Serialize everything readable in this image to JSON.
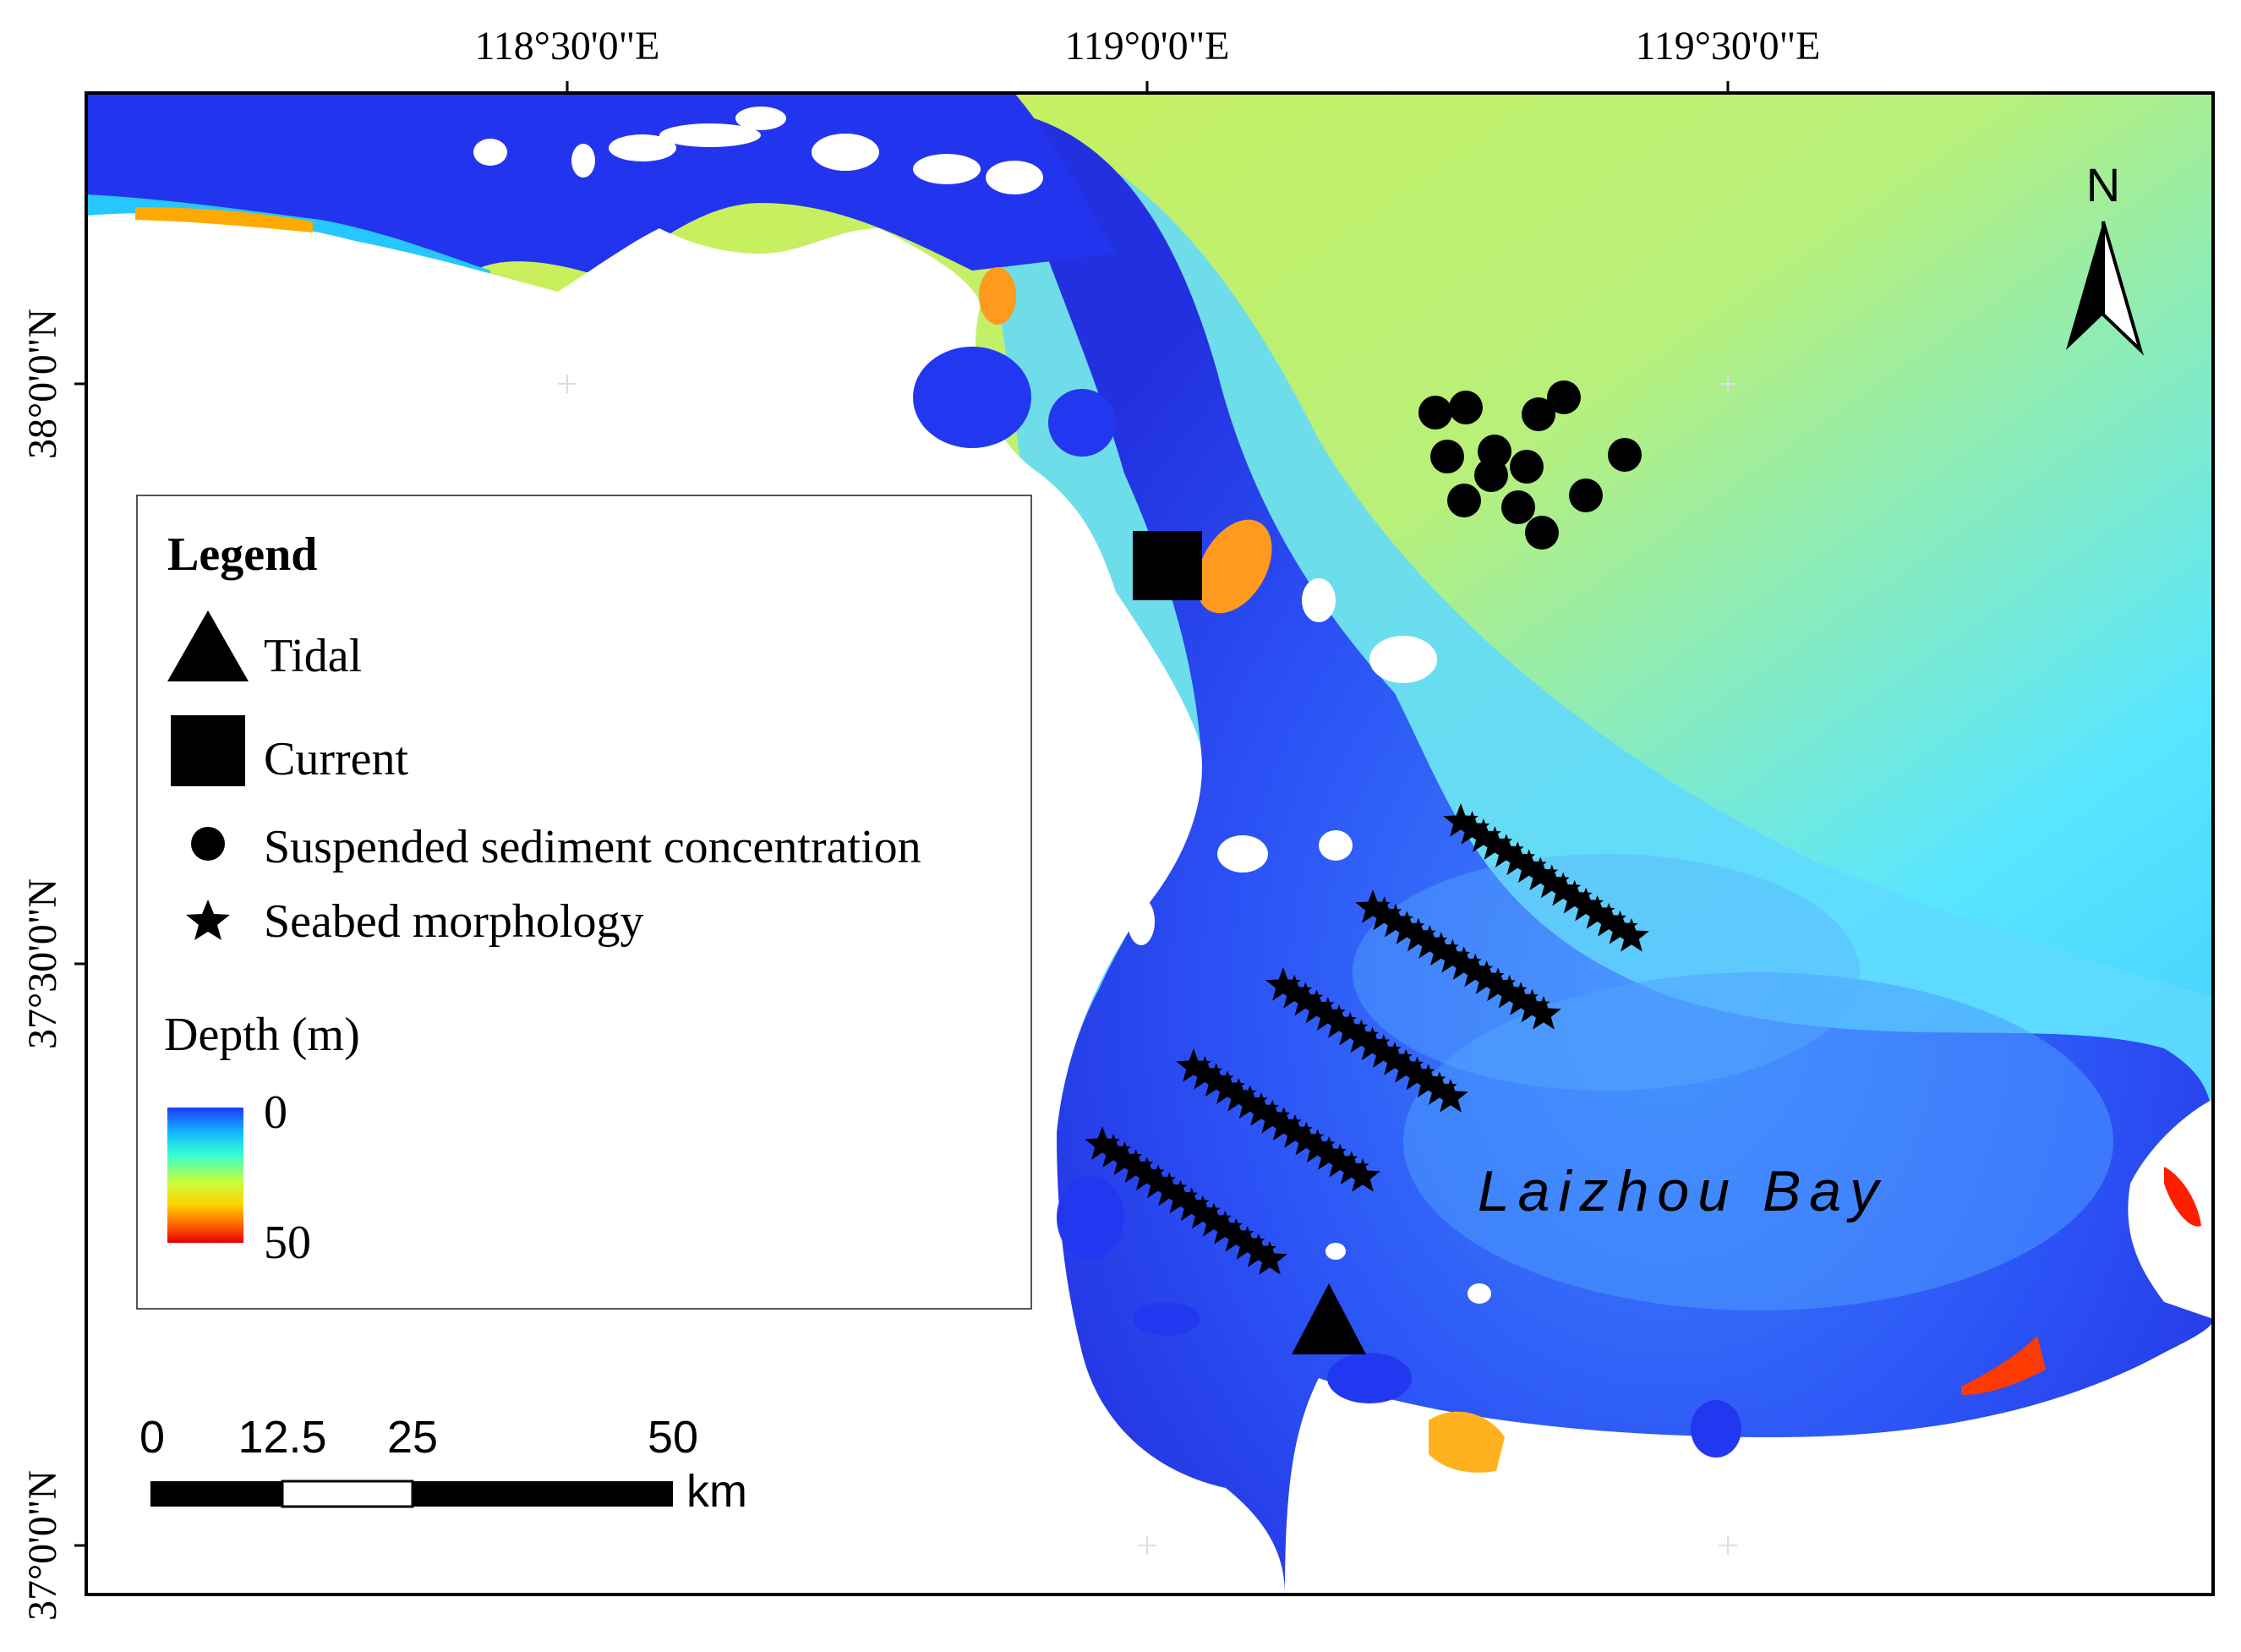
{
  "map": {
    "axis_labels": {
      "lon": [
        "118°30'0\"E",
        "119°0'0\"E",
        "119°30'0\"E"
      ],
      "lat": [
        "38°0'0\"N",
        "37°30'0\"N",
        "37°0'0\"N"
      ]
    },
    "north_arrow_label": "N",
    "place_label": "Laizhou Bay",
    "legend": {
      "title": "Legend",
      "items": [
        {
          "symbol": "triangle",
          "label": "Tidal"
        },
        {
          "symbol": "square",
          "label": "Current"
        },
        {
          "symbol": "circle",
          "label": "Suspended sediment concentration"
        },
        {
          "symbol": "star",
          "label": "Seabed morphology"
        }
      ],
      "depth_title": "Depth (m)",
      "depth_min": "0",
      "depth_max": "50",
      "depth_colors": [
        "#1e3cff",
        "#12b4ff",
        "#34ffd2",
        "#c8ff3c",
        "#ffd200",
        "#ff5a00",
        "#e60000"
      ]
    },
    "scale_bar": {
      "ticks": [
        "0",
        "12.5",
        "25",
        "50"
      ],
      "unit": "km"
    },
    "colors": {
      "deep": "#c9f046",
      "mid": "#6ee6ff",
      "shallow": "#2a2ee8",
      "nearshore": "#1450ff",
      "hot": "#ff6a00",
      "land": "#ffffff",
      "frame": "#000000"
    }
  }
}
